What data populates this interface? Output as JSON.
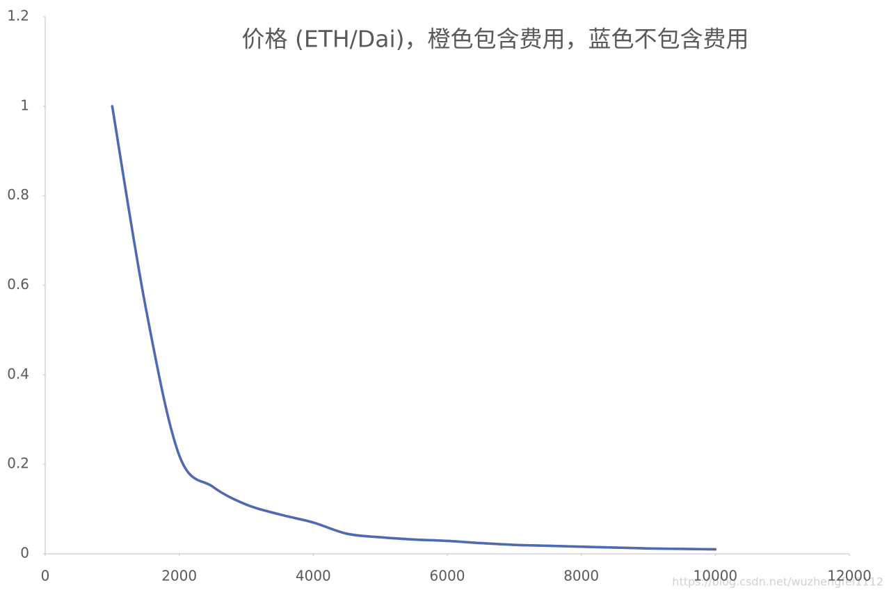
{
  "chart_data": {
    "type": "line",
    "title": "价格 (ETH/Dai)，橙色包含费用，蓝色不包含费用",
    "x": [
      1000,
      1500,
      2000,
      2500,
      3000,
      3500,
      4000,
      4500,
      5000,
      5500,
      6000,
      6500,
      7000,
      7500,
      8000,
      8500,
      9000,
      9500,
      10000
    ],
    "series": [
      {
        "name": "橙色包含费用",
        "color": "#ed7d31",
        "values": [
          1,
          0.55,
          0.22,
          0.15,
          0.11,
          0.088,
          0.07,
          0.045,
          0.037,
          0.032,
          0.029,
          0.024,
          0.02,
          0.018,
          0.016,
          0.014,
          0.012,
          0.011,
          0.01
        ]
      },
      {
        "name": "蓝色不包含费用",
        "color": "#4a6bb5",
        "values": [
          1,
          0.55,
          0.22,
          0.15,
          0.11,
          0.088,
          0.07,
          0.045,
          0.037,
          0.032,
          0.029,
          0.024,
          0.02,
          0.018,
          0.016,
          0.014,
          0.012,
          0.011,
          0.01
        ]
      }
    ],
    "xlim": [
      0,
      12000
    ],
    "xticks": [
      0,
      2000,
      4000,
      6000,
      8000,
      10000,
      12000
    ],
    "ylim": [
      0,
      1.2
    ],
    "yticks": [
      0,
      0.2,
      0.4,
      0.6,
      0.8,
      1,
      1.2
    ],
    "grid": false,
    "watermark": "https://blog.csdn.net/wuzhengfei1112"
  }
}
